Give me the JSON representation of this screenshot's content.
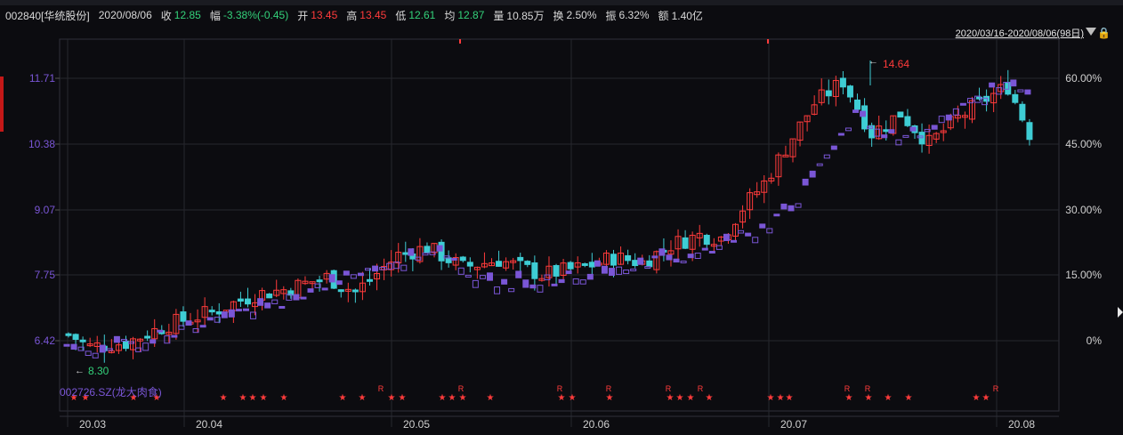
{
  "stock": {
    "code_name": "002840[华统股份]",
    "date": "2020/08/06",
    "close_label": "收",
    "close_value": "12.85",
    "change_label": "幅",
    "change_value": "-3.38%(-0.45)",
    "open_label": "开",
    "open_value": "13.45",
    "high_label": "高",
    "high_value": "13.45",
    "low_label": "低",
    "low_value": "12.61",
    "avg_label": "均",
    "avg_value": "12.87",
    "volume_label": "量",
    "volume_value": "10.85万",
    "turnover_label": "换",
    "turnover_value": "2.50%",
    "amplitude_label": "振",
    "amplitude_value": "6.32%",
    "amount_label": "额",
    "amount_value": "1.40亿"
  },
  "range_label": "2020/03/16-2020/08/06(98日)",
  "lock_icon": "lock-icon",
  "colors": {
    "background": "#0c0c10",
    "up": "#ff3b3b",
    "down": "#33d17a",
    "purple": "#7a56d6",
    "cyan": "#3ecdd4",
    "grid": "#26272e"
  },
  "chart_data": {
    "type": "candlestick",
    "y_left_ticks": [
      "11.71",
      "10.38",
      "9.07",
      "7.75",
      "6.42"
    ],
    "y_right_ticks": [
      "60.00%",
      "45.00%",
      "30.00%",
      "15.00%",
      "0%"
    ],
    "x_ticks": [
      "20.03",
      "20.04",
      "20.05",
      "20.06",
      "20.07",
      "20.08"
    ],
    "high_annotation": "14.64",
    "low_annotation": "8.30",
    "compare_series": "002726.SZ(龙大肉食)"
  }
}
